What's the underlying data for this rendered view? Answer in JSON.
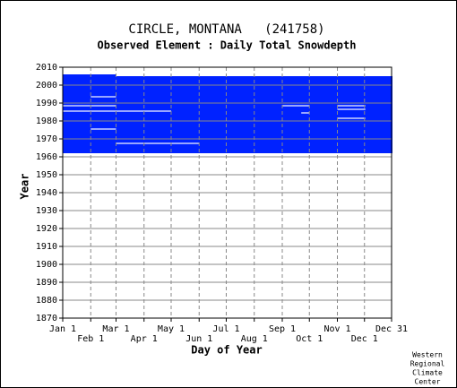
{
  "chart_data": {
    "type": "coverage",
    "title": "CIRCLE, MONTANA   (241758)",
    "subtitle": "Observed Element : Daily Total Snowdepth",
    "xlabel": "Day of Year",
    "ylabel": "Year",
    "credit": [
      "Western",
      "Regional",
      "Climate",
      "Center"
    ],
    "xlim": [
      1,
      365
    ],
    "ylim": [
      1870,
      2010
    ],
    "xticks": [
      {
        "value": 1,
        "label": "Jan 1"
      },
      {
        "value": 32,
        "label": "Feb 1"
      },
      {
        "value": 60,
        "label": "Mar 1"
      },
      {
        "value": 91,
        "label": "Apr 1"
      },
      {
        "value": 121,
        "label": "May 1"
      },
      {
        "value": 152,
        "label": "Jun 1"
      },
      {
        "value": 182,
        "label": "Jul 1"
      },
      {
        "value": 213,
        "label": "Aug 1"
      },
      {
        "value": 244,
        "label": "Sep 1"
      },
      {
        "value": 274,
        "label": "Oct 1"
      },
      {
        "value": 305,
        "label": "Nov 1"
      },
      {
        "value": 335,
        "label": "Dec 1"
      },
      {
        "value": 365,
        "label": "Dec 31"
      }
    ],
    "yticks": [
      1870,
      1880,
      1890,
      1900,
      1910,
      1920,
      1930,
      1940,
      1950,
      1960,
      1970,
      1980,
      1990,
      2000,
      2010
    ],
    "grid": true,
    "color": "#0022ff",
    "gap_color": "#ffffff",
    "blocks": [
      [
        1,
        59,
        1962,
        2005
      ],
      [
        60,
        365,
        1962,
        2004
      ]
    ],
    "gaps": [
      [
        1,
        59,
        1988,
        1988
      ],
      [
        1,
        59,
        1985,
        1985
      ],
      [
        60,
        120,
        1985,
        1985
      ],
      [
        60,
        151,
        1967,
        1967
      ],
      [
        32,
        59,
        1975,
        1975
      ],
      [
        32,
        59,
        1993,
        1993
      ],
      [
        244,
        273,
        1988,
        1988
      ],
      [
        265,
        273,
        1984,
        1984
      ],
      [
        305,
        335,
        1988,
        1988
      ],
      [
        305,
        335,
        1986,
        1986
      ],
      [
        305,
        335,
        1981,
        1981
      ]
    ]
  }
}
